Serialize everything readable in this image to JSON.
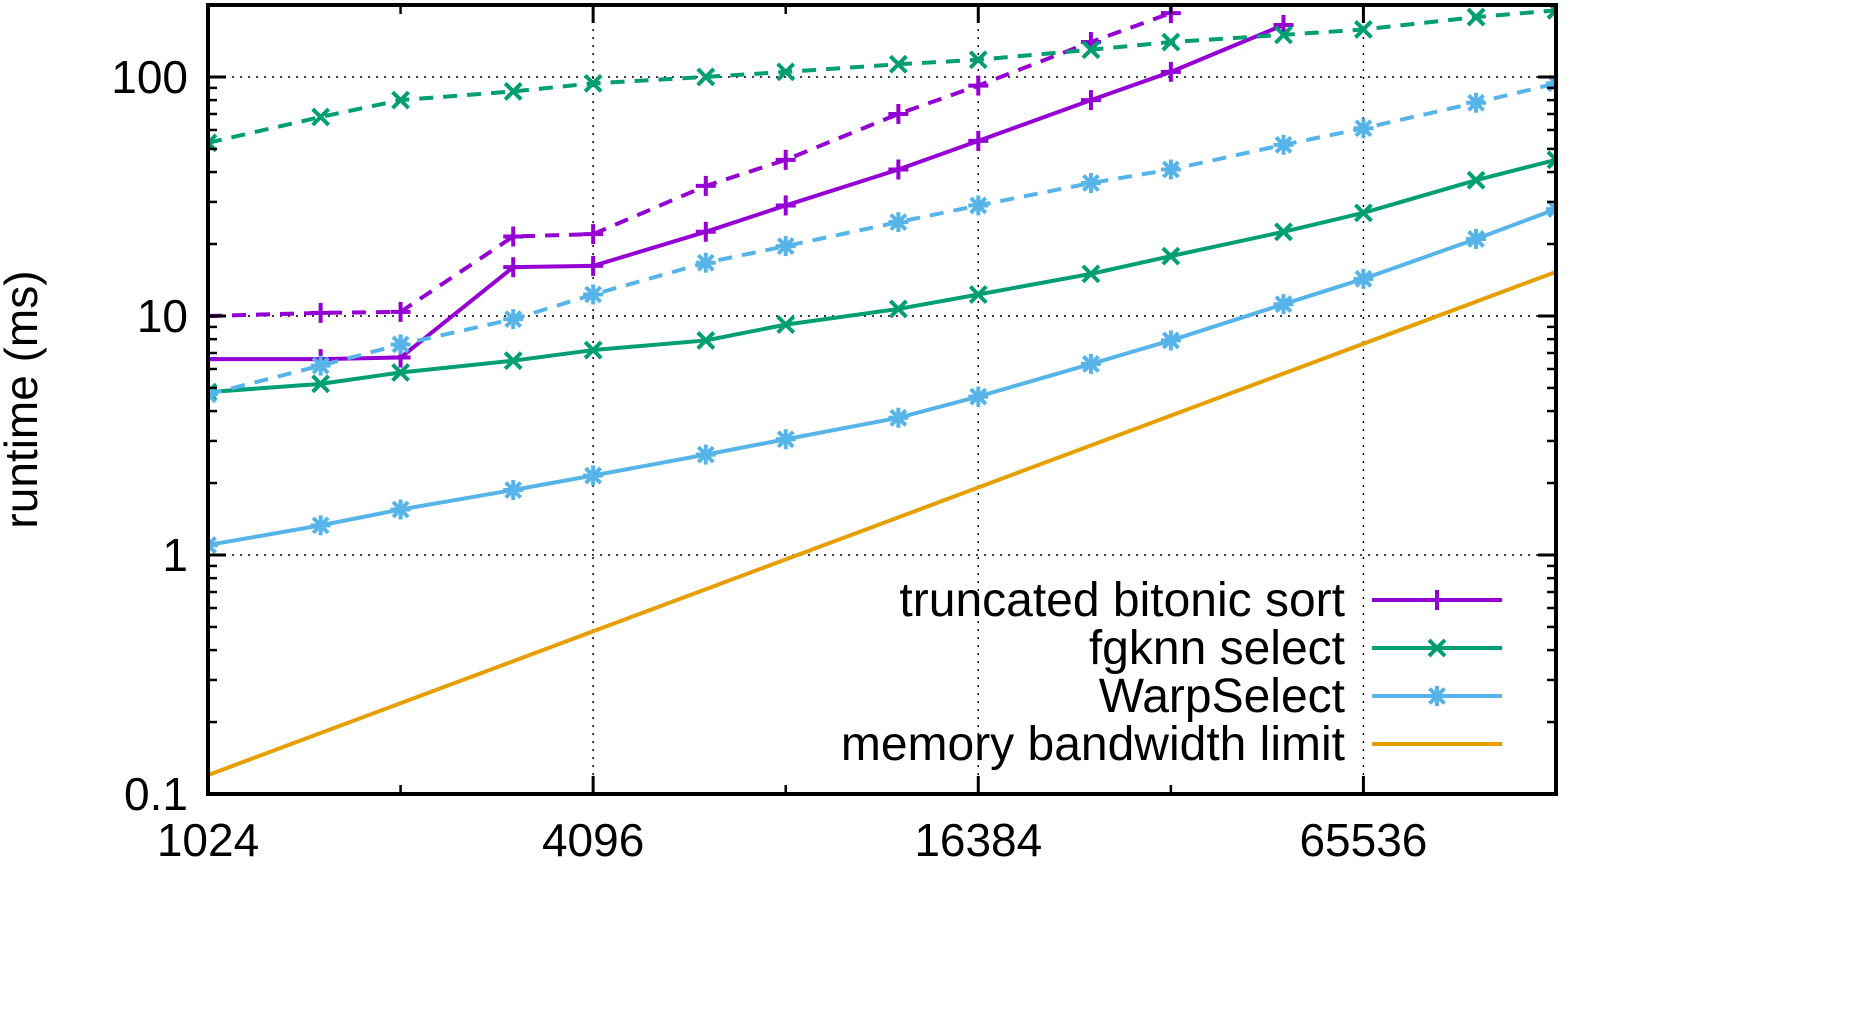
{
  "chart_data": {
    "type": "line",
    "title": "",
    "xlabel": "",
    "ylabel": "runtime (ms)",
    "x_scale": "log2",
    "y_scale": "log10",
    "xlim": [
      1024,
      131072
    ],
    "ylim": [
      0.1,
      200
    ],
    "x_ticks": [
      "1024",
      "4096",
      "16384",
      "65536"
    ],
    "y_ticks": [
      "0.1",
      "1",
      "10",
      "100"
    ],
    "grid": "dotted",
    "legend_position": "bottom-right",
    "x": [
      1024,
      1536,
      2048,
      3072,
      4096,
      6144,
      8192,
      12288,
      16384,
      24576,
      32768,
      49152,
      65536,
      98304,
      131072
    ],
    "series": [
      {
        "name": "truncated bitonic sort",
        "color": "#9400d3",
        "marker": "plus",
        "dash": "solid",
        "values": [
          6.6,
          6.6,
          6.7,
          16,
          16.2,
          22.5,
          29,
          41,
          54,
          80,
          105,
          165,
          null,
          null,
          null
        ]
      },
      {
        "name": "",
        "color": "#9400d3",
        "marker": "plus",
        "dash": "dashed",
        "values": [
          10,
          10.3,
          10.4,
          21.5,
          22,
          35,
          45,
          70,
          92,
          140,
          185,
          null,
          null,
          null,
          null
        ]
      },
      {
        "name": "fgknn select",
        "color": "#009e73",
        "marker": "cross",
        "dash": "solid",
        "values": [
          4.8,
          5.2,
          5.8,
          6.5,
          7.2,
          7.9,
          9.2,
          10.7,
          12.3,
          15,
          17.8,
          22.5,
          27,
          37,
          45
        ]
      },
      {
        "name": "",
        "color": "#009e73",
        "marker": "cross",
        "dash": "dashed",
        "values": [
          53,
          68,
          80,
          87,
          94,
          100,
          105,
          113,
          118,
          130,
          140,
          150,
          158,
          178,
          190
        ]
      },
      {
        "name": "WarpSelect",
        "color": "#56b4e9",
        "marker": "star",
        "dash": "solid",
        "values": [
          1.1,
          1.33,
          1.55,
          1.87,
          2.15,
          2.63,
          3.05,
          3.75,
          4.6,
          6.3,
          7.9,
          11.2,
          14.3,
          21,
          28
        ]
      },
      {
        "name": "",
        "color": "#56b4e9",
        "marker": "star",
        "dash": "dashed",
        "values": [
          4.7,
          6.2,
          7.6,
          9.7,
          12.3,
          16.7,
          19.6,
          24.7,
          29,
          36,
          41,
          52,
          61,
          78,
          94
        ]
      },
      {
        "name": "memory bandwidth limit",
        "color": "#e69f00",
        "marker": "none",
        "dash": "solid",
        "values": [
          0.12,
          null,
          null,
          null,
          null,
          null,
          null,
          null,
          null,
          null,
          null,
          null,
          null,
          null,
          15.3
        ]
      }
    ]
  }
}
